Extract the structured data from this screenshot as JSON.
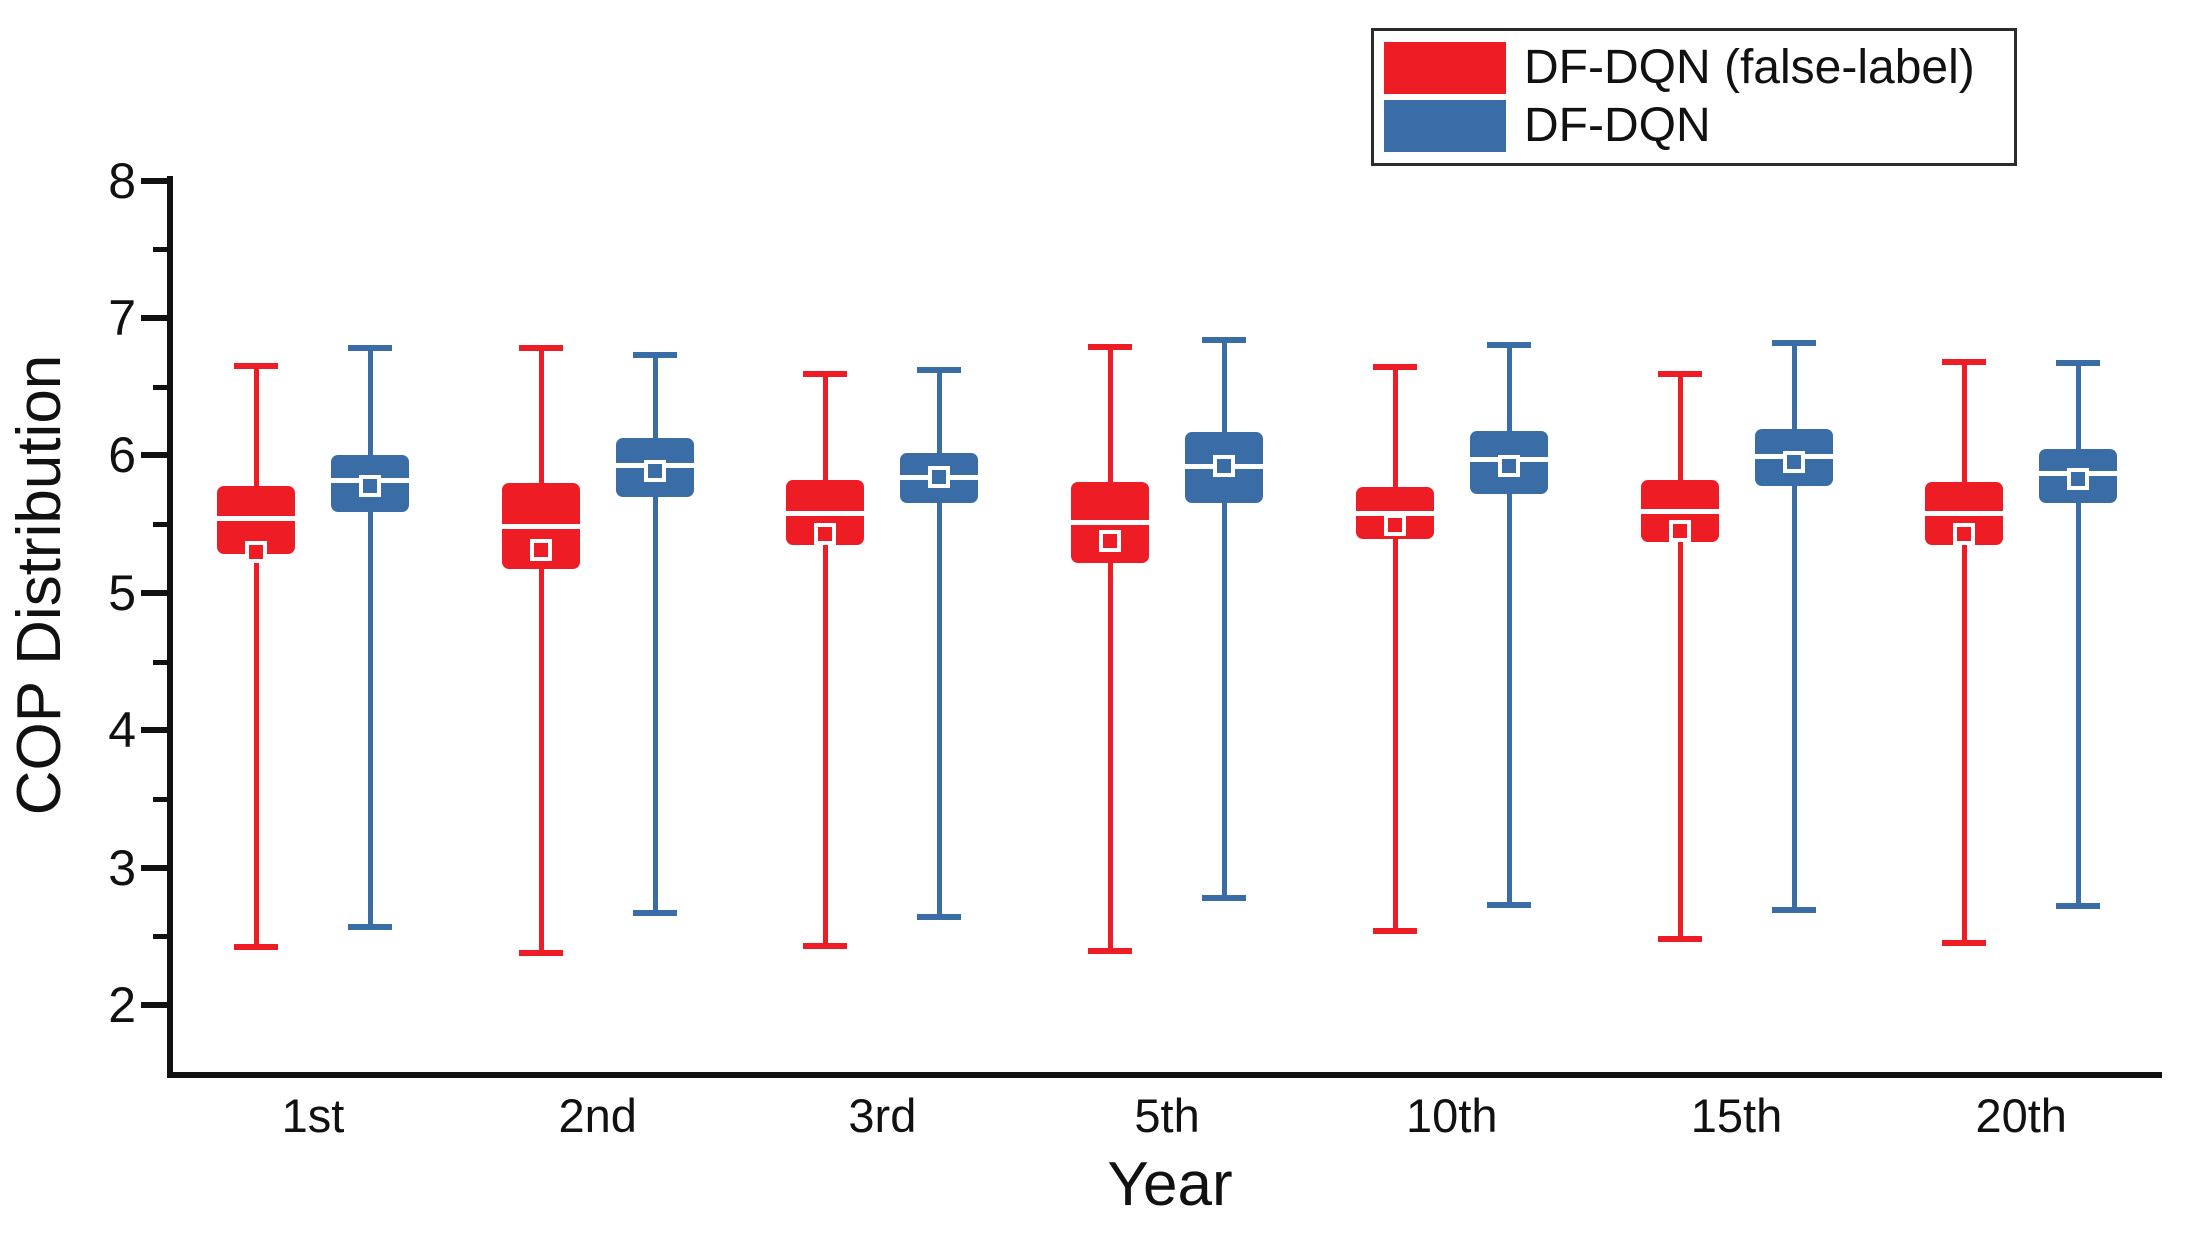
{
  "figure": {
    "y_axis_label": "COP Distribution",
    "x_axis_label": "Year"
  },
  "legend": {
    "position": "top-right",
    "items": [
      {
        "label": "DF-DQN (false-label)",
        "color": "#ee1c25"
      },
      {
        "label": "DF-DQN",
        "color": "#3a6ca5"
      }
    ]
  },
  "chart_data": {
    "type": "boxplot",
    "title": "",
    "xlabel": "Year",
    "ylabel": "COP Distribution",
    "categories": [
      "1st",
      "2nd",
      "3rd",
      "5th",
      "10th",
      "15th",
      "20th"
    ],
    "ylim": [
      1.5,
      8
    ],
    "y_major_ticks": [
      8,
      7,
      6,
      5,
      4,
      3,
      2
    ],
    "y_minor_ticks": [
      7.5,
      6.5,
      5.5,
      4.5,
      3.5,
      2.5
    ],
    "grid": false,
    "legend_position": "top-right",
    "series": [
      {
        "name": "DF-DQN (false-label)",
        "color": "#ee1c25",
        "boxes": [
          {
            "category": "1st",
            "whisker_low": 2.42,
            "q1": 5.28,
            "median": 5.54,
            "q3": 5.78,
            "whisker_high": 6.65,
            "mean": 5.3
          },
          {
            "category": "2nd",
            "whisker_low": 2.38,
            "q1": 5.17,
            "median": 5.48,
            "q3": 5.8,
            "whisker_high": 6.78,
            "mean": 5.31
          },
          {
            "category": "3rd",
            "whisker_low": 2.43,
            "q1": 5.35,
            "median": 5.58,
            "q3": 5.82,
            "whisker_high": 6.59,
            "mean": 5.43
          },
          {
            "category": "5th",
            "whisker_low": 2.39,
            "q1": 5.22,
            "median": 5.51,
            "q3": 5.81,
            "whisker_high": 6.79,
            "mean": 5.38
          },
          {
            "category": "10th",
            "whisker_low": 2.54,
            "q1": 5.39,
            "median": 5.58,
            "q3": 5.77,
            "whisker_high": 6.64,
            "mean": 5.49
          },
          {
            "category": "15th",
            "whisker_low": 2.48,
            "q1": 5.37,
            "median": 5.59,
            "q3": 5.82,
            "whisker_high": 6.59,
            "mean": 5.45
          },
          {
            "category": "20th",
            "whisker_low": 2.45,
            "q1": 5.35,
            "median": 5.58,
            "q3": 5.81,
            "whisker_high": 6.68,
            "mean": 5.43
          }
        ]
      },
      {
        "name": "DF-DQN",
        "color": "#3a6ca5",
        "boxes": [
          {
            "category": "1st",
            "whisker_low": 2.57,
            "q1": 5.59,
            "median": 5.82,
            "q3": 6.0,
            "whisker_high": 6.78,
            "mean": 5.78
          },
          {
            "category": "2nd",
            "whisker_low": 2.67,
            "q1": 5.7,
            "median": 5.93,
            "q3": 6.13,
            "whisker_high": 6.73,
            "mean": 5.89
          },
          {
            "category": "3rd",
            "whisker_low": 2.64,
            "q1": 5.65,
            "median": 5.84,
            "q3": 6.02,
            "whisker_high": 6.62,
            "mean": 5.84
          },
          {
            "category": "5th",
            "whisker_low": 2.78,
            "q1": 5.65,
            "median": 5.92,
            "q3": 6.17,
            "whisker_high": 6.84,
            "mean": 5.92
          },
          {
            "category": "10th",
            "whisker_low": 2.73,
            "q1": 5.72,
            "median": 5.97,
            "q3": 6.18,
            "whisker_high": 6.8,
            "mean": 5.92
          },
          {
            "category": "15th",
            "whisker_low": 2.69,
            "q1": 5.78,
            "median": 5.99,
            "q3": 6.19,
            "whisker_high": 6.82,
            "mean": 5.95
          },
          {
            "category": "20th",
            "whisker_low": 2.72,
            "q1": 5.65,
            "median": 5.87,
            "q3": 6.05,
            "whisker_high": 6.67,
            "mean": 5.83
          }
        ]
      }
    ]
  }
}
